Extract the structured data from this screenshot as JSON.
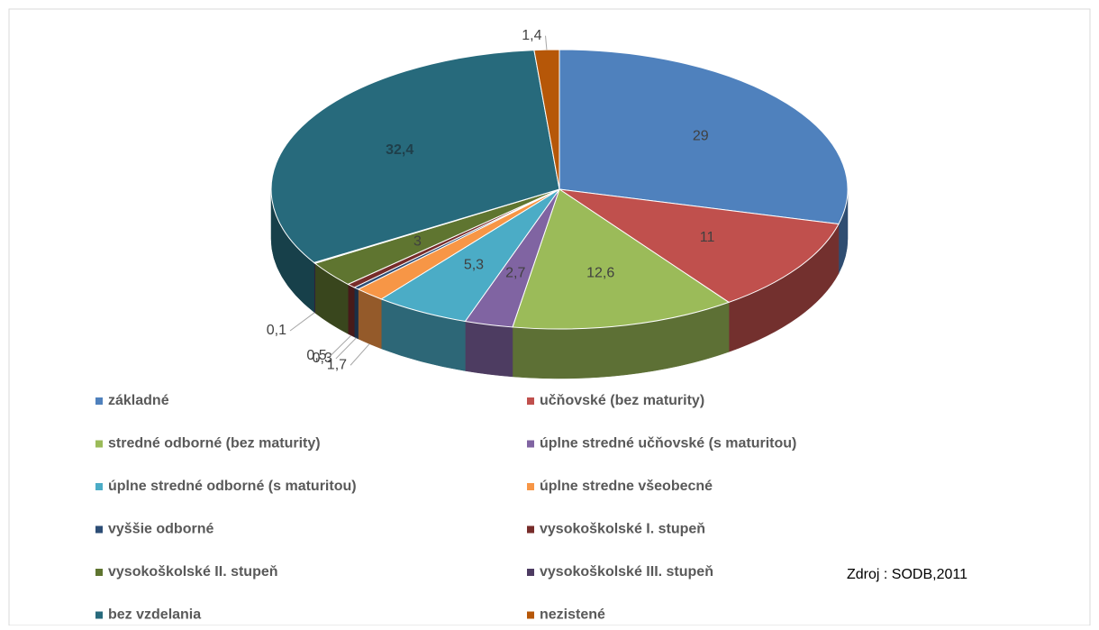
{
  "chart_data": {
    "type": "pie3d",
    "categories": [
      "základné",
      "učňovské (bez maturity)",
      "stredné odborné (bez maturity)",
      "úplne stredné učňovské (s maturitou)",
      "úplne stredné odborné  (s maturitou)",
      "úplne stredne všeobecné",
      "vyššie odborné",
      "vysokoškolské  I. stupeň",
      "vysokoškolské  II. stupeň",
      "vysokoškolské  III. stupeň",
      "bez vzdelania",
      "nezistené"
    ],
    "values": [
      29,
      11,
      12.6,
      2.7,
      5.3,
      1.7,
      0.3,
      0.5,
      3,
      0.1,
      32.4,
      1.4
    ],
    "value_labels": [
      "29",
      "11",
      "12,6",
      "2,7",
      "5,3",
      "1,7",
      "0,3",
      "0,5",
      "3",
      "0,1",
      "32,4",
      "1,4"
    ],
    "colors": [
      "#4f81bd",
      "#c0504d",
      "#9bbb59",
      "#8064a2",
      "#4bacc6",
      "#f79646",
      "#2c4d75",
      "#772c2a",
      "#5f7530",
      "#4d3b62",
      "#276a7c",
      "#b65708"
    ],
    "annotation": "Zdroj : SODB,2011"
  }
}
